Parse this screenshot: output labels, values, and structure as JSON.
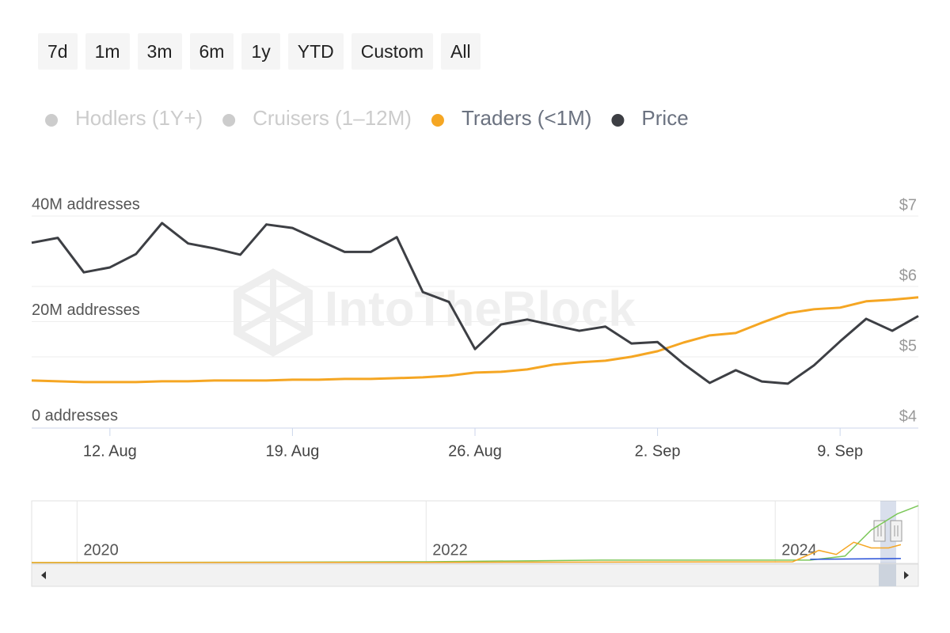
{
  "toolbar": {
    "buttons": [
      "7d",
      "1m",
      "3m",
      "6m",
      "1y",
      "YTD",
      "Custom",
      "All"
    ]
  },
  "chart_data": {
    "type": "line",
    "watermark": "IntoTheBlock",
    "hidden_series": [
      {
        "name": "Hodlers (1Y+)"
      },
      {
        "name": "Cruisers (1–12M)"
      }
    ],
    "categories": [
      null,
      null,
      null,
      "12. Aug",
      null,
      null,
      null,
      null,
      null,
      null,
      "19. Aug",
      null,
      null,
      null,
      null,
      null,
      null,
      "26. Aug",
      null,
      null,
      null,
      null,
      null,
      null,
      "2. Sep",
      null,
      null,
      null,
      null,
      null,
      null,
      "9. Sep",
      null,
      null,
      null
    ],
    "series": [
      {
        "name": "Traders (<1M)",
        "color": "#f5a623",
        "axis": "y",
        "values": [
          8850000,
          8700000,
          8550000,
          8550000,
          8550000,
          8700000,
          8700000,
          8850000,
          8850000,
          8850000,
          9000000,
          9000000,
          9150000,
          9150000,
          9300000,
          9450000,
          9750000,
          10350000,
          10500000,
          10950000,
          11850000,
          12300000,
          12600000,
          13350000,
          14400000,
          16050000,
          17400000,
          17850000,
          19800000,
          21600000,
          22350000,
          22650000,
          23850000,
          24150000,
          24600000
        ]
      },
      {
        "name": "Price",
        "color": "#3d3f44",
        "axis": "y2",
        "values": [
          6.62,
          6.69,
          6.2,
          6.27,
          6.46,
          6.9,
          6.61,
          6.54,
          6.45,
          6.88,
          6.83,
          6.66,
          6.49,
          6.49,
          6.7,
          5.92,
          5.78,
          5.11,
          5.46,
          5.53,
          5.45,
          5.37,
          5.43,
          5.19,
          5.21,
          4.9,
          4.63,
          4.81,
          4.65,
          4.62,
          4.88,
          5.22,
          5.54,
          5.37,
          5.58
        ]
      }
    ],
    "ylim": [
      0,
      40000000
    ],
    "yticks": [
      {
        "value": 0,
        "label": "0 addresses"
      },
      {
        "value": 20000000,
        "label": "20M addresses"
      },
      {
        "value": 40000000,
        "label": "40M addresses"
      }
    ],
    "y2lim": [
      4,
      7
    ],
    "y2ticks": [
      {
        "value": 4,
        "label": "$4"
      },
      {
        "value": 5,
        "label": "$5"
      },
      {
        "value": 6,
        "label": "$6"
      },
      {
        "value": 7,
        "label": "$7"
      }
    ],
    "grid": true,
    "navigator": {
      "xlim": [
        2019.74,
        2024.82
      ],
      "ylim": [
        0,
        72
      ],
      "xticks": [
        2020,
        2022,
        2024
      ],
      "series": [
        {
          "color": "#7cc85a",
          "x": [
            2019.74,
            2021,
            2022,
            2023,
            2024.2,
            2024.4,
            2024.55,
            2024.7,
            2024.82
          ],
          "values": [
            0,
            0.5,
            1,
            3,
            3,
            8,
            40,
            60,
            70
          ]
        },
        {
          "color": "#f5a623",
          "x": [
            2019.74,
            2022,
            2024.1,
            2024.25,
            2024.35,
            2024.45,
            2024.55,
            2024.65,
            2024.72
          ],
          "values": [
            0,
            0.3,
            1,
            15,
            10,
            25,
            18,
            18,
            22
          ]
        },
        {
          "color": "#2850d8",
          "x": [
            2024.2,
            2024.72
          ],
          "values": [
            4,
            5
          ]
        }
      ]
    }
  }
}
